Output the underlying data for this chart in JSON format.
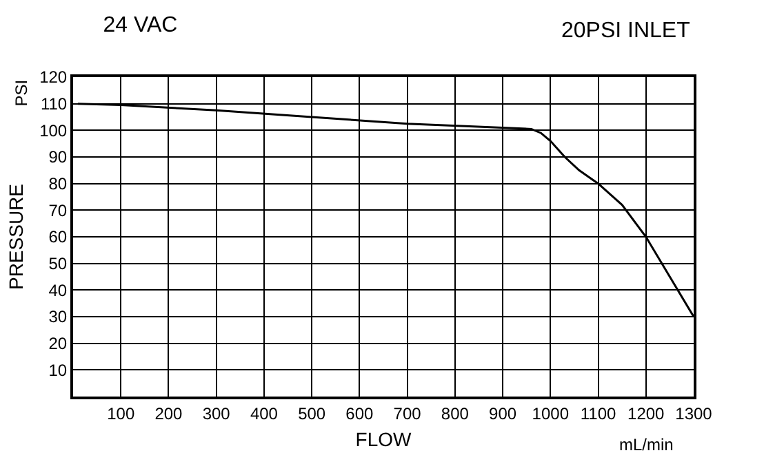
{
  "chart_data": {
    "type": "line",
    "title": "24 VAC",
    "subtitle": "20PSI INLET",
    "xlabel": "FLOW",
    "ylabel": "PRESSURE",
    "annotations": [
      "PSI",
      "mL/min"
    ],
    "x": [
      10,
      100,
      300,
      500,
      700,
      900,
      960,
      980,
      1000,
      1030,
      1060,
      1100,
      1150,
      1200,
      1250,
      1300
    ],
    "series": [
      {
        "color": "#000000",
        "values": [
          110,
          109.5,
          107.5,
          105,
          102.5,
          101,
          100.5,
          99,
          96,
          90,
          85,
          80,
          72,
          60,
          45,
          30
        ]
      }
    ],
    "xlim": [
      0,
      1300
    ],
    "xticks": [
      {
        "value": 0,
        "label": null
      },
      100,
      200,
      300,
      400,
      500,
      600,
      700,
      800,
      900,
      1000,
      1100,
      1200,
      1300
    ],
    "ylim": [
      0,
      120
    ],
    "yticks": [
      {
        "value": 0,
        "label": null
      },
      10,
      20,
      30,
      40,
      50,
      60,
      70,
      80,
      90,
      100,
      110,
      120
    ],
    "grid": true,
    "marker": "none",
    "line_style": "solid"
  }
}
